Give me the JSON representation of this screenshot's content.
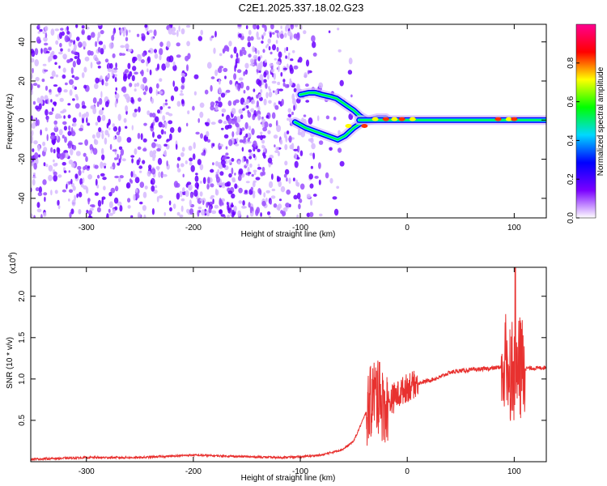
{
  "title": "C2E1.2025.337.18.02.G23",
  "chart_data": [
    {
      "type": "heatmap",
      "xlabel": "Height of straight line (km)",
      "ylabel": "Frequency (Hz)",
      "xlim": [
        -352,
        130
      ],
      "ylim": [
        -50,
        49
      ],
      "x_ticks": [
        -300,
        -200,
        -100,
        0,
        100
      ],
      "y_ticks": [
        -40,
        -20,
        0,
        20,
        40
      ],
      "colorbar": {
        "label": "Normalized spectral amplitude",
        "range": [
          0.0,
          1.0
        ],
        "ticks": [
          0.0,
          0.2,
          0.4,
          0.6,
          0.8
        ],
        "colormap": [
          "#ffffff",
          "#7a00ff",
          "#0000ff",
          "#00d8ff",
          "#00ff00",
          "#ffff00",
          "#ff0000",
          "#ff0090"
        ]
      },
      "noise_region_x": [
        -352,
        -72
      ],
      "branches": [
        {
          "x": [
            -105,
            -95,
            -85,
            -75,
            -65,
            -58,
            -50,
            -42,
            -35,
            -28,
            -20
          ],
          "y": [
            -1,
            -4,
            -6,
            -8,
            -10,
            -8,
            -4,
            -1,
            0,
            1,
            1
          ]
        },
        {
          "x": [
            -100,
            -92,
            -86,
            -80,
            -72,
            -66,
            -58,
            -50,
            -44,
            -38
          ],
          "y": [
            13,
            14,
            14,
            13,
            12,
            11,
            8,
            5,
            2,
            0
          ]
        },
        {
          "x": [
            -45,
            -30,
            -15,
            0,
            20,
            40,
            60,
            80,
            90,
            100,
            110,
            130
          ],
          "y": [
            0,
            0,
            0,
            0,
            0,
            0,
            0,
            0,
            0,
            0,
            0,
            0
          ]
        }
      ]
    },
    {
      "type": "line",
      "xlabel": "Height of straight line (km)",
      "ylabel": "SNR (10 * v/v)",
      "y_multiplier": "(x10",
      "y_multiplier_exp": "4",
      "y_multiplier_close": ")",
      "xlim": [
        -352,
        130
      ],
      "ylim": [
        0,
        23500
      ],
      "x_ticks": [
        -300,
        -200,
        -100,
        0,
        100
      ],
      "y_ticks": [
        0.5,
        1.0,
        1.5,
        2.0
      ],
      "y_tick_labels": [
        "0.5",
        "1.0",
        "1.5",
        "2.0"
      ],
      "color": "#e8312f",
      "series": [
        {
          "x": [
            -352,
            -300,
            -250,
            -200,
            -150,
            -120,
            -100,
            -80,
            -60,
            -50,
            -45,
            -40,
            -35,
            -30,
            -25,
            -20,
            -15,
            -10,
            -5,
            0,
            10,
            20,
            30,
            40,
            50,
            60,
            70,
            80,
            90,
            95,
            100,
            105,
            110,
            120,
            130
          ],
          "y": [
            300,
            500,
            500,
            800,
            600,
            500,
            600,
            800,
            1500,
            2500,
            4000,
            5500,
            7000,
            8500,
            7000,
            6500,
            7500,
            8000,
            8500,
            9000,
            9500,
            9800,
            10200,
            10800,
            11000,
            11100,
            11200,
            11300,
            11500,
            11600,
            11000,
            11200,
            11300,
            11300,
            11400
          ],
          "noise_spans": [
            {
              "x": [
                -38,
                -18
              ],
              "amp": 4500
            },
            {
              "x": [
                -18,
                10
              ],
              "amp": 1800
            },
            {
              "x": [
                88,
                110
              ],
              "amp": 6500
            }
          ],
          "peaks": [
            {
              "x": -26,
              "y": 12000
            },
            {
              "x": 101,
              "y": 23500
            }
          ]
        }
      ]
    }
  ]
}
